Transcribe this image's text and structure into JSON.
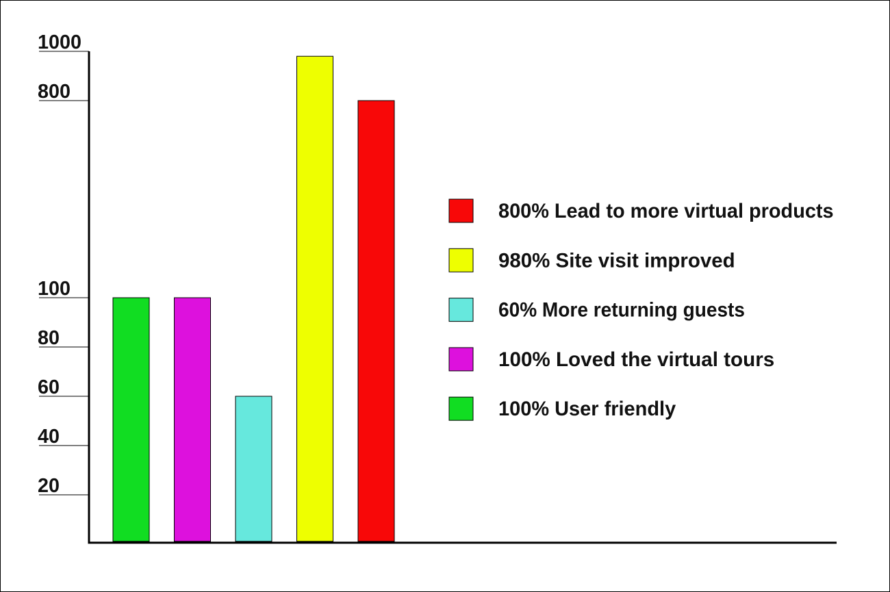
{
  "chart_data": {
    "type": "bar",
    "categories": [
      "100% User friendly",
      "100% Loved the virtual tours",
      "60% More returning guests",
      "980% Site visit improved",
      "800% Lead to more virtual products"
    ],
    "values": [
      100,
      100,
      60,
      980,
      800
    ],
    "colors": [
      "#11dd22",
      "#dd11dd",
      "#66e8dd",
      "#eeff00",
      "#f80808"
    ],
    "ylim": [
      0,
      1000
    ],
    "yticks": [
      20,
      40,
      60,
      80,
      100,
      800,
      1000
    ],
    "legend": "right"
  }
}
